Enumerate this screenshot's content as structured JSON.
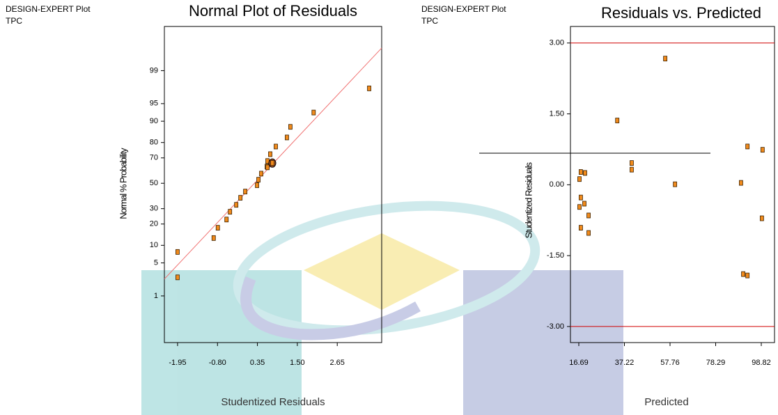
{
  "chart_data": [
    {
      "type": "scatter",
      "header": [
        "DESIGN-EXPERT Plot",
        "TPC"
      ],
      "title": "Normal Plot of Residuals",
      "x_label": "Studentized Residuals",
      "y_label": "Normal % Probability",
      "yscale": "probit",
      "x": [
        -1.95,
        -1.95,
        -0.91,
        -0.79,
        -0.54,
        -0.44,
        -0.26,
        -0.14,
        0.0,
        0.34,
        0.38,
        0.46,
        0.62,
        0.64,
        0.64,
        0.72,
        0.88,
        1.2,
        1.3,
        1.97,
        3.57,
        0.78
      ],
      "values": [
        2.6,
        7.8,
        12.9,
        17.9,
        22.7,
        27.8,
        32.8,
        38.2,
        43.2,
        48.4,
        52.9,
        57.9,
        63.5,
        62.9,
        67.7,
        72.6,
        77.6,
        82.8,
        87.8,
        92.8,
        97.5,
        66.2
      ],
      "highlight_point": 21,
      "color": "#f08a1c",
      "fit_line": {
        "x": [
          -2.33,
          3.93
        ],
        "y": [
          2.4,
          99.74
        ],
        "color": "#f07070"
      },
      "xlim": [
        -2.33,
        3.93
      ],
      "ylim": [
        0.05,
        99.94
      ],
      "xticks": [
        -1.95,
        {
          "value": -0.8,
          "label": "-0.80"
        },
        0.35,
        {
          "value": 1.5,
          "label": "1.50"
        },
        2.65
      ],
      "yticks": [
        1,
        5,
        10,
        20,
        30,
        50,
        70,
        80,
        90,
        95,
        99
      ]
    },
    {
      "type": "scatter",
      "header": [
        "DESIGN-EXPERT Plot",
        "TPC"
      ],
      "title": "Residuals vs. Predicted",
      "x_label": "Predicted",
      "y_label": "Studentized Residuals",
      "x": [
        17.0,
        17.6,
        19.5,
        17.6,
        17.0,
        19.2,
        21.1,
        17.6,
        21.1,
        34.0,
        40.5,
        40.5,
        55.6,
        60.0,
        89.7,
        92.6,
        99.4,
        99.1,
        90.7,
        92.6
      ],
      "values": [
        0.12,
        0.27,
        0.25,
        -0.27,
        -0.47,
        -0.4,
        -0.65,
        -0.91,
        -1.02,
        1.36,
        0.46,
        0.32,
        2.67,
        0.01,
        0.04,
        0.81,
        0.74,
        -0.71,
        -1.89,
        -1.92
      ],
      "color": "#f08a1c",
      "hlines": [
        3,
        -3
      ],
      "hline_color": "#d00000",
      "xlim": [
        12.93,
        104.78
      ],
      "ylim": [
        -3.34,
        3.35
      ],
      "xticks": [
        16.69,
        37.22,
        57.76,
        78.29,
        98.82
      ],
      "yticks": [
        {
          "value": 3,
          "label": "3.00"
        },
        {
          "value": 1.5,
          "label": "1.50"
        },
        {
          "value": 0,
          "label": "0.00"
        },
        {
          "value": -1.5,
          "label": "-1.50"
        },
        {
          "value": -3,
          "label": "-3.00"
        }
      ]
    }
  ]
}
